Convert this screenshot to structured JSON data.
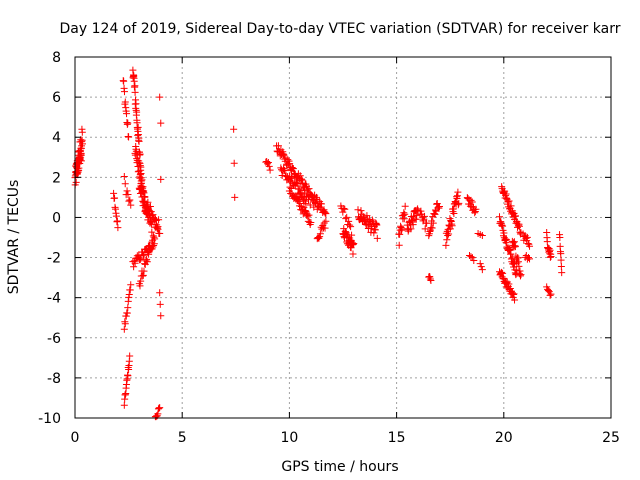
{
  "chart_data": {
    "type": "scatter",
    "title": "Day 124 of 2019, Sidereal Day-to-day VTEC variation (SDTVAR) for receiver karr",
    "xlabel": "GPS time / hours",
    "ylabel": "SDTVAR / TECUs",
    "xlim": [
      0,
      25
    ],
    "ylim": [
      -10,
      8
    ],
    "xticks": [
      0,
      5,
      10,
      15,
      20,
      25
    ],
    "yticks": [
      -10,
      -8,
      -6,
      -4,
      -2,
      0,
      2,
      4,
      6,
      8
    ],
    "grid": true,
    "marker": "+",
    "color": "#ff0000",
    "segments": [
      {
        "x0": 0.0,
        "x1": 0.35,
        "y0": 1.8,
        "y1": 4.0,
        "n": 40,
        "jitter": 0.6
      },
      {
        "x0": 0.05,
        "x1": 0.3,
        "y0": 2.2,
        "y1": 3.2,
        "n": 20,
        "jitter": 0.4
      },
      {
        "x0": 1.8,
        "x1": 2.0,
        "y0": 1.3,
        "y1": -0.5,
        "n": 10,
        "jitter": 0.2
      },
      {
        "x0": 2.25,
        "x1": 2.5,
        "y0": 6.8,
        "y1": 4.0,
        "n": 14,
        "jitter": 0.3
      },
      {
        "x0": 2.3,
        "x1": 2.6,
        "y0": 1.8,
        "y1": 0.5,
        "n": 8,
        "jitter": 0.3
      },
      {
        "x0": 2.3,
        "x1": 2.55,
        "y0": -9.3,
        "y1": -7.0,
        "n": 16,
        "jitter": 0.15
      },
      {
        "x0": 2.3,
        "x1": 2.6,
        "y0": -5.5,
        "y1": -3.5,
        "n": 14,
        "jitter": 0.2
      },
      {
        "x0": 2.7,
        "x1": 3.1,
        "y0": 7.5,
        "y1": 2.0,
        "n": 40,
        "jitter": 0.4
      },
      {
        "x0": 2.8,
        "x1": 3.4,
        "y0": 3.5,
        "y1": 0.0,
        "n": 40,
        "jitter": 0.4
      },
      {
        "x0": 3.0,
        "x1": 3.6,
        "y0": 1.5,
        "y1": -0.5,
        "n": 35,
        "jitter": 0.35
      },
      {
        "x0": 2.7,
        "x1": 3.7,
        "y0": -2.3,
        "y1": -1.3,
        "n": 30,
        "jitter": 0.2
      },
      {
        "x0": 3.0,
        "x1": 3.9,
        "y0": -3.3,
        "y1": -0.2,
        "n": 30,
        "jitter": 0.25
      },
      {
        "x0": 3.4,
        "x1": 3.95,
        "y0": 0.5,
        "y1": -0.6,
        "n": 15,
        "jitter": 0.3
      },
      {
        "x0": 3.75,
        "x1": 3.95,
        "y0": -10.0,
        "y1": -9.5,
        "n": 8,
        "jitter": 0.1
      },
      {
        "x0": 3.95,
        "x1": 4.0,
        "y0": 6.0,
        "y1": 4.7,
        "n": 2,
        "jitter": 0.0
      },
      {
        "x0": 3.95,
        "x1": 4.0,
        "y0": -3.8,
        "y1": -5.0,
        "n": 3,
        "jitter": 0.1
      },
      {
        "x0": 4.0,
        "x1": 4.0,
        "y0": 1.9,
        "y1": 1.9,
        "n": 1,
        "jitter": 0.0
      },
      {
        "x0": 7.4,
        "x1": 7.45,
        "y0": 4.4,
        "y1": 1.0,
        "n": 3,
        "jitter": 0.0
      },
      {
        "x0": 8.9,
        "x1": 9.1,
        "y0": 2.8,
        "y1": 2.5,
        "n": 6,
        "jitter": 0.15
      },
      {
        "x0": 9.4,
        "x1": 11.7,
        "y0": 3.5,
        "y1": 0.2,
        "n": 80,
        "jitter": 0.2
      },
      {
        "x0": 9.6,
        "x1": 10.8,
        "y0": 2.4,
        "y1": 0.9,
        "n": 40,
        "jitter": 0.25
      },
      {
        "x0": 10.0,
        "x1": 11.0,
        "y0": 1.4,
        "y1": -0.2,
        "n": 35,
        "jitter": 0.2
      },
      {
        "x0": 10.4,
        "x1": 11.3,
        "y0": 1.2,
        "y1": 0.6,
        "n": 12,
        "jitter": 0.2
      },
      {
        "x0": 11.3,
        "x1": 11.7,
        "y0": -1.0,
        "y1": -0.3,
        "n": 12,
        "jitter": 0.2
      },
      {
        "x0": 12.4,
        "x1": 12.9,
        "y0": 0.6,
        "y1": -0.6,
        "n": 12,
        "jitter": 0.3
      },
      {
        "x0": 12.5,
        "x1": 13.0,
        "y0": -0.7,
        "y1": -1.6,
        "n": 30,
        "jitter": 0.3
      },
      {
        "x0": 13.2,
        "x1": 14.1,
        "y0": 0.2,
        "y1": -0.7,
        "n": 40,
        "jitter": 0.35
      },
      {
        "x0": 15.1,
        "x1": 15.4,
        "y0": -1.2,
        "y1": 0.4,
        "n": 15,
        "jitter": 0.4
      },
      {
        "x0": 15.5,
        "x1": 16.0,
        "y0": -0.7,
        "y1": 0.4,
        "n": 25,
        "jitter": 0.35
      },
      {
        "x0": 16.1,
        "x1": 16.4,
        "y0": 0.4,
        "y1": -0.5,
        "n": 10,
        "jitter": 0.3
      },
      {
        "x0": 16.5,
        "x1": 16.6,
        "y0": -2.9,
        "y1": -3.2,
        "n": 5,
        "jitter": 0.1
      },
      {
        "x0": 16.5,
        "x1": 17.0,
        "y0": -0.8,
        "y1": 0.8,
        "n": 20,
        "jitter": 0.3
      },
      {
        "x0": 17.3,
        "x1": 17.9,
        "y0": -1.1,
        "y1": 1.1,
        "n": 30,
        "jitter": 0.4
      },
      {
        "x0": 18.3,
        "x1": 18.7,
        "y0": 1.0,
        "y1": 0.3,
        "n": 15,
        "jitter": 0.25
      },
      {
        "x0": 18.4,
        "x1": 18.6,
        "y0": -1.8,
        "y1": -2.1,
        "n": 4,
        "jitter": 0.1
      },
      {
        "x0": 18.9,
        "x1": 19.0,
        "y0": -2.3,
        "y1": -2.6,
        "n": 3,
        "jitter": 0.0
      },
      {
        "x0": 18.8,
        "x1": 19.0,
        "y0": -0.8,
        "y1": -0.9,
        "n": 3,
        "jitter": 0.0
      },
      {
        "x0": 19.9,
        "x1": 20.8,
        "y0": 1.5,
        "y1": -0.7,
        "n": 40,
        "jitter": 0.2
      },
      {
        "x0": 19.8,
        "x1": 20.6,
        "y0": -0.1,
        "y1": -2.8,
        "n": 40,
        "jitter": 0.2
      },
      {
        "x0": 19.8,
        "x1": 20.5,
        "y0": -2.7,
        "y1": -4.0,
        "n": 30,
        "jitter": 0.2
      },
      {
        "x0": 20.4,
        "x1": 20.8,
        "y0": -1.0,
        "y1": -3.0,
        "n": 18,
        "jitter": 0.3
      },
      {
        "x0": 20.9,
        "x1": 21.2,
        "y0": -0.9,
        "y1": -1.3,
        "n": 10,
        "jitter": 0.2
      },
      {
        "x0": 21.0,
        "x1": 21.2,
        "y0": -1.9,
        "y1": -2.1,
        "n": 5,
        "jitter": 0.1
      },
      {
        "x0": 22.0,
        "x1": 22.2,
        "y0": -1.0,
        "y1": -2.0,
        "n": 15,
        "jitter": 0.3
      },
      {
        "x0": 22.0,
        "x1": 22.2,
        "y0": -3.4,
        "y1": -3.9,
        "n": 6,
        "jitter": 0.1
      },
      {
        "x0": 22.6,
        "x1": 22.7,
        "y0": -0.8,
        "y1": -2.7,
        "n": 8,
        "jitter": 0.1
      }
    ]
  }
}
